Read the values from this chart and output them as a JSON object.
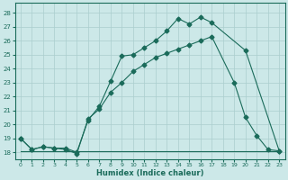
{
  "xlabel": "Humidex (Indice chaleur)",
  "bg_color": "#cce8e8",
  "line_color": "#1a6b5a",
  "grid_color": "#aacece",
  "xlim": [
    -0.5,
    23.5
  ],
  "ylim": [
    17.5,
    28.7
  ],
  "xticks": [
    0,
    1,
    2,
    3,
    4,
    5,
    6,
    7,
    8,
    9,
    10,
    11,
    12,
    13,
    14,
    15,
    16,
    17,
    18,
    19,
    20,
    21,
    22,
    23
  ],
  "yticks": [
    18,
    19,
    20,
    21,
    22,
    23,
    24,
    25,
    26,
    27,
    28
  ],
  "line1_x": [
    0,
    1,
    2,
    3,
    4,
    5,
    6,
    7,
    8,
    9,
    10,
    11,
    12,
    13,
    14,
    15,
    16,
    17,
    20,
    23
  ],
  "line1_y": [
    19.0,
    18.2,
    18.4,
    18.3,
    18.3,
    18.0,
    20.3,
    21.3,
    23.1,
    24.9,
    25.0,
    25.5,
    26.0,
    26.7,
    27.6,
    27.2,
    27.7,
    27.3,
    25.3,
    18.1
  ],
  "line2_x": [
    0,
    23
  ],
  "line2_y": [
    18.1,
    18.1
  ],
  "line3_x": [
    0,
    1,
    2,
    3,
    4,
    5,
    6,
    7,
    8,
    9,
    10,
    11,
    12,
    13,
    14,
    15,
    16,
    17,
    19,
    20,
    21,
    22,
    23
  ],
  "line3_y": [
    19.0,
    18.2,
    18.4,
    18.3,
    18.2,
    17.9,
    20.4,
    21.1,
    22.3,
    23.0,
    23.8,
    24.3,
    24.8,
    25.1,
    25.4,
    25.7,
    26.0,
    26.3,
    23.0,
    20.5,
    19.2,
    18.2,
    18.1
  ],
  "marker": "D",
  "markersize": 2.5
}
